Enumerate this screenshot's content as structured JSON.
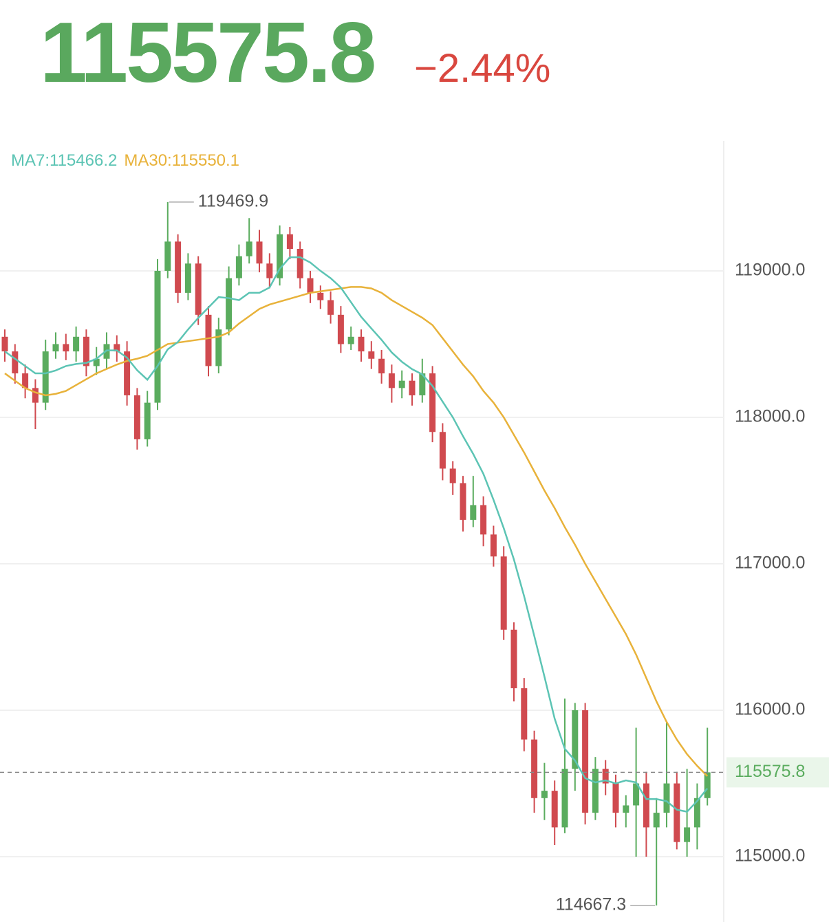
{
  "header": {
    "price": "115575.8",
    "change": "−2.44%"
  },
  "chart_data": {
    "type": "candlestick",
    "up_color": "#5aac5e",
    "down_color": "#d04a4f",
    "open": [
      118550,
      118450,
      118300,
      118200,
      118100,
      118450,
      118500,
      118450,
      118550,
      118350,
      118400,
      118500,
      118450,
      118150,
      117850,
      118100,
      119000,
      119200,
      118850,
      119050,
      118700,
      118350,
      118600,
      118950,
      119100,
      119200,
      119050,
      118950,
      119250,
      119150,
      118950,
      118850,
      118800,
      118700,
      118500,
      118550,
      118450,
      118400,
      118300,
      118200,
      118250,
      118150,
      118300,
      117900,
      117650,
      117550,
      117300,
      117400,
      117200,
      117050,
      116550,
      116150,
      115800,
      115400,
      115450,
      115200,
      115600,
      116000,
      115300,
      115600,
      115500,
      115300,
      115350,
      115500,
      115200,
      115300,
      115500,
      115100,
      115200,
      115400
    ],
    "high": [
      118600,
      118500,
      118360,
      118260,
      118530,
      118580,
      118570,
      118620,
      118600,
      118480,
      118580,
      118560,
      118520,
      118200,
      118180,
      119080,
      119469.9,
      119250,
      119120,
      119100,
      118760,
      118680,
      119030,
      119180,
      119360,
      119280,
      119120,
      119310,
      119300,
      119200,
      119000,
      118900,
      118860,
      118760,
      118620,
      118600,
      118520,
      118460,
      118360,
      118320,
      118300,
      118400,
      118350,
      117960,
      117700,
      117600,
      117600,
      117460,
      117260,
      117120,
      116600,
      116220,
      115860,
      115640,
      115520,
      116080,
      116050,
      116050,
      115680,
      115660,
      115560,
      115420,
      115880,
      115580,
      115400,
      115920,
      115580,
      115600,
      115500,
      115880
    ],
    "low": [
      118380,
      118230,
      118130,
      117920,
      118050,
      118400,
      118390,
      118380,
      118280,
      118290,
      118330,
      118380,
      118080,
      117780,
      117800,
      118050,
      118950,
      118780,
      118800,
      118630,
      118280,
      118300,
      118560,
      118900,
      119050,
      118990,
      118880,
      118900,
      119080,
      118880,
      118780,
      118740,
      118640,
      118440,
      118460,
      118380,
      118330,
      118230,
      118100,
      118130,
      118080,
      118100,
      117830,
      117570,
      117470,
      117220,
      117250,
      117120,
      116980,
      116480,
      116060,
      115720,
      115300,
      115250,
      115080,
      115160,
      115450,
      115220,
      115250,
      115420,
      115200,
      115200,
      115000,
      115000,
      114667.3,
      115200,
      115050,
      115000,
      115050,
      115350
    ],
    "close": [
      118450,
      118300,
      118200,
      118100,
      118450,
      118500,
      118450,
      118550,
      118350,
      118400,
      118500,
      118450,
      118150,
      117850,
      118100,
      119000,
      119200,
      118850,
      119050,
      118700,
      118350,
      118600,
      118950,
      119100,
      119200,
      119050,
      118950,
      119250,
      119150,
      118950,
      118850,
      118800,
      118700,
      118500,
      118550,
      118450,
      118400,
      118300,
      118200,
      118250,
      118150,
      118300,
      117900,
      117650,
      117550,
      117300,
      117400,
      117200,
      117050,
      116550,
      116150,
      115800,
      115400,
      115450,
      115200,
      115600,
      116000,
      115300,
      115600,
      115500,
      115300,
      115350,
      115500,
      115200,
      115300,
      115500,
      115100,
      115200,
      115400,
      115575.8
    ],
    "ma7": {
      "label": "MA7:115466.2",
      "color": "#5cc4b4",
      "values": [
        118450,
        118400,
        118350,
        118300,
        118300,
        118320,
        118350,
        118364,
        118371,
        118400,
        118457,
        118457,
        118407,
        118321,
        118257,
        118350,
        118464,
        118514,
        118600,
        118679,
        118750,
        118821,
        118814,
        118800,
        118850,
        118850,
        118886,
        119014,
        119093,
        119093,
        119057,
        119000,
        118950,
        118886,
        118786,
        118686,
        118607,
        118529,
        118443,
        118379,
        118329,
        118293,
        118214,
        118107,
        118000,
        117871,
        117750,
        117614,
        117436,
        117243,
        117029,
        116779,
        116507,
        116229,
        115943,
        115736,
        115657,
        115536,
        115507,
        115521,
        115500,
        115521,
        115507,
        115393,
        115393,
        115379,
        115321,
        115307,
        115380,
        115466.2
      ]
    },
    "ma30": {
      "label": "MA30:115550.1",
      "color": "#e8b23a",
      "values": [
        118300,
        118250,
        118200,
        118170,
        118150,
        118160,
        118180,
        118220,
        118260,
        118300,
        118330,
        118360,
        118385,
        118400,
        118420,
        118460,
        118500,
        118510,
        118520,
        118530,
        118540,
        118550,
        118580,
        118640,
        118690,
        118740,
        118770,
        118790,
        118810,
        118830,
        118850,
        118860,
        118870,
        118880,
        118890,
        118890,
        118880,
        118850,
        118800,
        118760,
        118720,
        118680,
        118630,
        118540,
        118450,
        118360,
        118280,
        118180,
        118100,
        118000,
        117880,
        117760,
        117630,
        117500,
        117380,
        117250,
        117130,
        117000,
        116880,
        116760,
        116640,
        116520,
        116380,
        116220,
        116060,
        115920,
        115800,
        115700,
        115620,
        115550.1
      ]
    },
    "ylim": [
      114554,
      119887
    ],
    "yticks": [
      {
        "value": 115000,
        "label": "115000.0"
      },
      {
        "value": 116000,
        "label": "116000.0"
      },
      {
        "value": 117000,
        "label": "117000.0"
      },
      {
        "value": 118000,
        "label": "118000.0"
      },
      {
        "value": 119000,
        "label": "119000.0"
      }
    ],
    "grid": true,
    "current_price": {
      "value": 115575.8,
      "label": "115575.8"
    },
    "annotations": [
      {
        "value": 119469.9,
        "label": "119469.9",
        "side": "high"
      },
      {
        "value": 114667.3,
        "label": "114667.3",
        "side": "low"
      }
    ]
  }
}
